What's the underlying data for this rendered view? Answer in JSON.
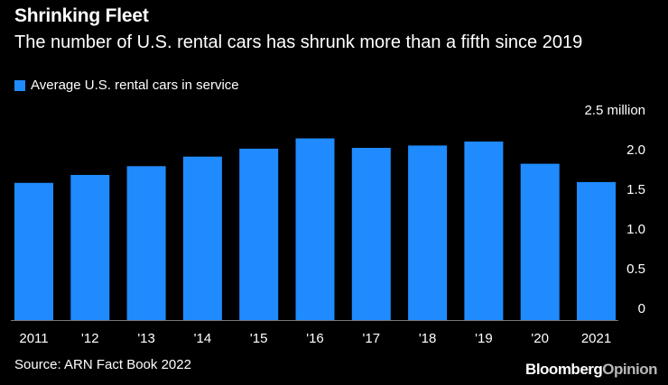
{
  "header": {
    "title": "Shrinking Fleet",
    "subtitle": "The number of U.S. rental cars has shrunk more than a fifth since 2019"
  },
  "legend": {
    "label": "Average U.S. rental cars in service"
  },
  "colors": {
    "bar": "#1f8bff",
    "background": "#000000",
    "text": "#ffffff",
    "brand_secondary": "#b8b8b8"
  },
  "chart_data": {
    "type": "bar",
    "title": "Shrinking Fleet",
    "subtitle": "The number of U.S. rental cars has shrunk more than a fifth since 2019",
    "categories": [
      "2011",
      "'12",
      "'13",
      "'14",
      "'15",
      "'16",
      "'17",
      "'18",
      "'19",
      "'20",
      "2021"
    ],
    "series": [
      {
        "name": "Average U.S. rental cars in service",
        "values": [
          1.73,
          1.83,
          1.94,
          2.06,
          2.16,
          2.29,
          2.17,
          2.2,
          2.25,
          1.97,
          1.74
        ]
      }
    ],
    "ylim": [
      0,
      2.5
    ],
    "y_ticks": [
      0,
      0.5,
      1.0,
      1.5,
      2.0,
      2.5
    ],
    "y_tick_labels": [
      "0",
      "0.5",
      "1.0",
      "1.5",
      "2.0",
      "2.5 million"
    ],
    "xlabel": "",
    "ylabel": "",
    "grid": false,
    "legend_position": "top-left"
  },
  "footer": {
    "source": "Source: ARN Fact Book 2022",
    "brand_main": "Bloomberg",
    "brand_secondary": "Opinion"
  }
}
